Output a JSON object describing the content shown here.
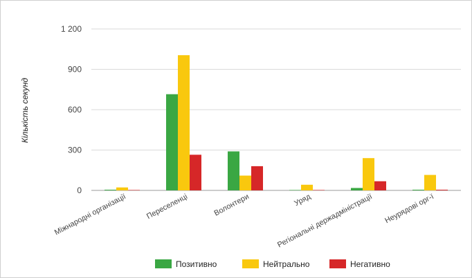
{
  "chart_data": {
    "type": "bar",
    "title": "",
    "xlabel": "",
    "ylabel": "Кількість секунд",
    "ylim": [
      0,
      1200
    ],
    "yticks": [
      0,
      300,
      600,
      900,
      1200
    ],
    "ytick_labels": [
      "0",
      "300",
      "600",
      "900",
      "1 200"
    ],
    "categories": [
      "Міжнародні організації",
      "Переселенці",
      "Волонтери",
      "Уряд",
      "Регіональні держадміністрації",
      "Неурядові орг-ї"
    ],
    "series": [
      {
        "name": "Позитивно",
        "color": "#3aa743",
        "values": [
          5,
          715,
          290,
          3,
          18,
          5
        ]
      },
      {
        "name": "Нейтрально",
        "color": "#f9c80e",
        "values": [
          22,
          1005,
          110,
          42,
          240,
          115
        ]
      },
      {
        "name": "Негативно",
        "color": "#d62728",
        "values": [
          3,
          265,
          180,
          3,
          68,
          5
        ]
      }
    ],
    "grid": true,
    "legend_position": "bottom"
  }
}
